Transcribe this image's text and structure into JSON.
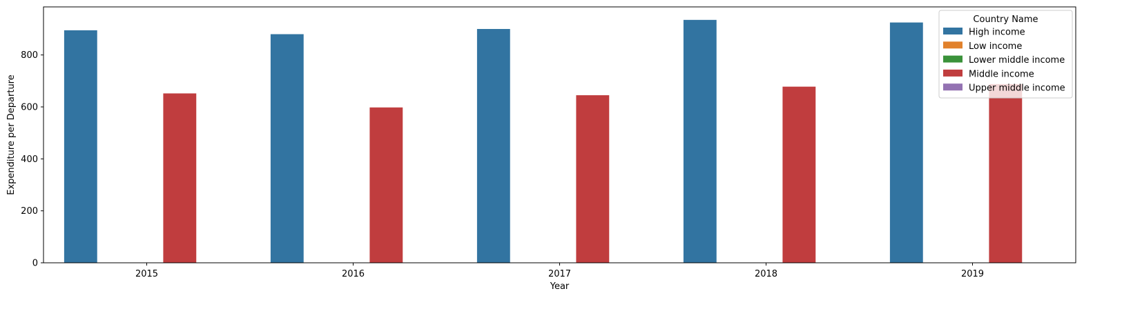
{
  "chart_data": {
    "type": "bar",
    "categories": [
      "2015",
      "2016",
      "2017",
      "2018",
      "2019"
    ],
    "series": [
      {
        "name": "High income",
        "color": "#3274a1",
        "values": [
          895,
          880,
          900,
          935,
          925
        ]
      },
      {
        "name": "Low income",
        "color": "#e1812c",
        "values": [
          null,
          null,
          null,
          null,
          null
        ]
      },
      {
        "name": "Lower middle income",
        "color": "#3a923a",
        "values": [
          null,
          null,
          null,
          null,
          null
        ]
      },
      {
        "name": "Middle income",
        "color": "#c03d3e",
        "values": [
          652,
          598,
          645,
          678,
          688
        ]
      },
      {
        "name": "Upper middle income",
        "color": "#9372b2",
        "values": [
          null,
          null,
          null,
          null,
          null
        ]
      }
    ],
    "xlabel": "Year",
    "ylabel": "Expenditure per Departure",
    "ylim": [
      0,
      985
    ],
    "yticks": [
      0,
      200,
      400,
      600,
      800
    ],
    "legend": {
      "title": "Country Name",
      "placement": "top-right"
    },
    "grid": false
  }
}
